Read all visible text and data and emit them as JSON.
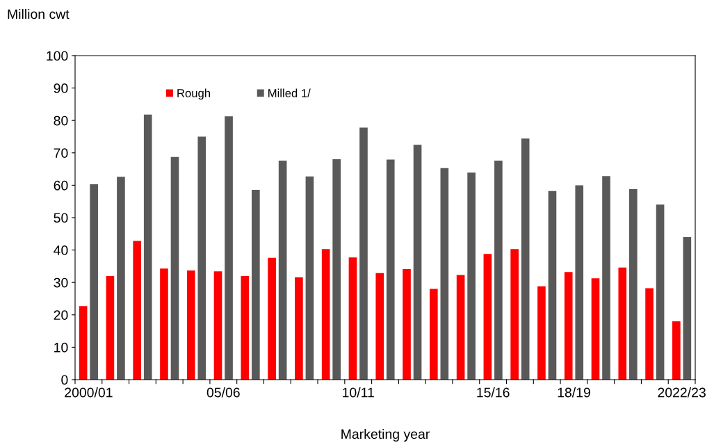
{
  "chart_data": {
    "type": "bar",
    "ylabel": "Million cwt",
    "xlabel": "Marketing year",
    "categories": [
      "2000/01",
      null,
      null,
      null,
      null,
      "05/06",
      null,
      null,
      null,
      null,
      "10/11",
      null,
      null,
      null,
      null,
      "15/16",
      null,
      null,
      "18/19",
      null,
      null,
      null,
      "2022/23"
    ],
    "series": [
      {
        "name": "Rough",
        "color": "#ff0000",
        "values": [
          22.7,
          32,
          42.8,
          34.3,
          33.7,
          33.4,
          32,
          37.6,
          31.6,
          40.3,
          37.7,
          32.9,
          34.1,
          28,
          32.3,
          38.8,
          40.3,
          28.8,
          33.2,
          31.3,
          34.6,
          28.2,
          18
        ]
      },
      {
        "name": "Milled 1/",
        "color": "#595959",
        "values": [
          60.3,
          62.6,
          81.8,
          68.7,
          75,
          81.3,
          58.6,
          67.6,
          62.7,
          68,
          77.8,
          67.9,
          72.5,
          65.3,
          63.9,
          67.6,
          74.4,
          58.2,
          60,
          62.8,
          58.8,
          54,
          44
        ]
      }
    ],
    "ylim": [
      0,
      100
    ],
    "yticks": [
      0,
      10,
      20,
      30,
      40,
      50,
      60,
      70,
      80,
      90,
      100
    ],
    "grid": false,
    "legend": "top left"
  }
}
